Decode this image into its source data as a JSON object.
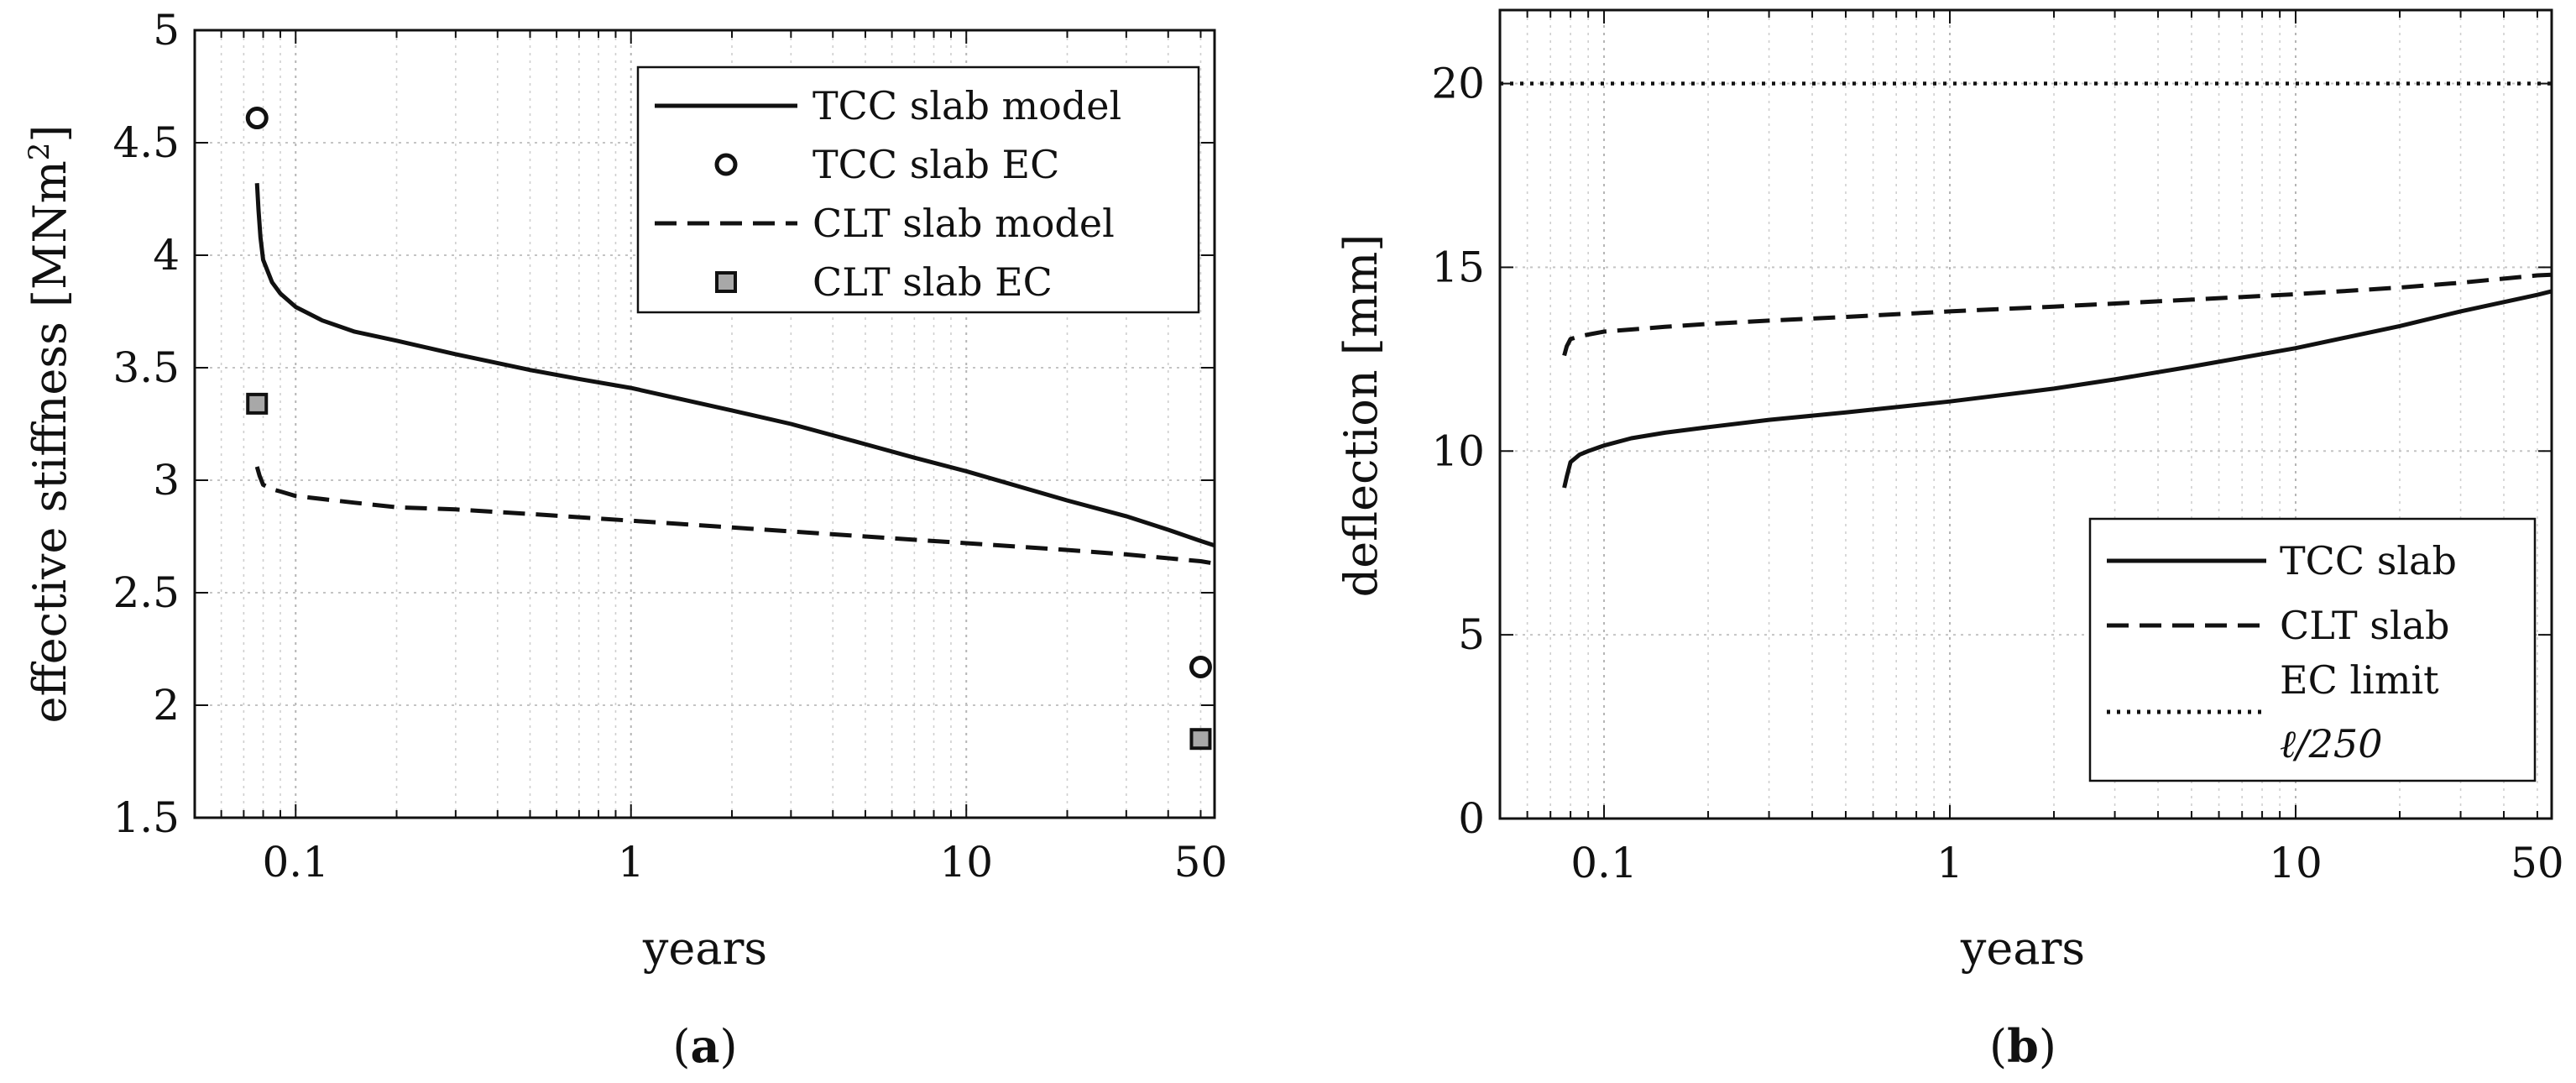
{
  "chart_data": [
    {
      "panel_label": "a",
      "type": "line",
      "title": "",
      "xlabel": "years",
      "ylabel": "effective stiffness [MNm2]",
      "ylabel_main": "effective stiffness [MNm",
      "ylabel_sup": "2",
      "ylabel_close": "]",
      "xscale": "log",
      "xlim": [
        0.05,
        55
      ],
      "ylim": [
        1.5,
        5
      ],
      "grid": true,
      "legend_position": "top-right",
      "xticks": [
        0.1,
        1,
        10,
        50
      ],
      "xtick_labels": [
        "0.1",
        "1",
        "10",
        "50"
      ],
      "yticks": [
        1.5,
        2,
        2.5,
        3,
        3.5,
        4,
        4.5,
        5
      ],
      "ytick_labels": [
        "1.5",
        "2",
        "2.5",
        "3",
        "3.5",
        "4",
        "4.5",
        "5"
      ],
      "series": [
        {
          "name": "TCC slab model",
          "style": "solid",
          "x": [
            0.0767,
            0.0775,
            0.0785,
            0.08,
            0.085,
            0.09,
            0.1,
            0.12,
            0.15,
            0.2,
            0.3,
            0.5,
            0.7,
            1,
            2,
            3,
            5,
            7,
            10,
            20,
            30,
            40,
            50,
            55
          ],
          "y": [
            4.32,
            4.2,
            4.08,
            3.98,
            3.88,
            3.83,
            3.77,
            3.71,
            3.66,
            3.62,
            3.56,
            3.49,
            3.45,
            3.41,
            3.31,
            3.25,
            3.16,
            3.1,
            3.04,
            2.91,
            2.84,
            2.78,
            2.73,
            2.71
          ]
        },
        {
          "name": "TCC slab EC",
          "style": "marker-circle",
          "x": [
            0.0767,
            50
          ],
          "y": [
            4.61,
            2.17
          ]
        },
        {
          "name": "CLT slab model",
          "style": "dashed",
          "x": [
            0.0767,
            0.078,
            0.08,
            0.085,
            0.09,
            0.1,
            0.15,
            0.2,
            0.3,
            0.5,
            1,
            2,
            5,
            10,
            20,
            30,
            50,
            55
          ],
          "y": [
            3.06,
            3.02,
            2.98,
            2.96,
            2.95,
            2.93,
            2.9,
            2.88,
            2.87,
            2.85,
            2.82,
            2.79,
            2.75,
            2.72,
            2.69,
            2.67,
            2.64,
            2.63
          ]
        },
        {
          "name": "CLT slab EC",
          "style": "marker-square",
          "x": [
            0.0767,
            50
          ],
          "y": [
            3.34,
            1.85
          ]
        }
      ]
    },
    {
      "panel_label": "b",
      "type": "line",
      "title": "",
      "xlabel": "years",
      "ylabel": "deflection [mm]",
      "xscale": "log",
      "xlim": [
        0.05,
        55
      ],
      "ylim": [
        0,
        22
      ],
      "grid": true,
      "legend_position": "bottom-right",
      "xticks": [
        0.1,
        1,
        10,
        50
      ],
      "xtick_labels": [
        "0.1",
        "1",
        "10",
        "50"
      ],
      "yticks": [
        0,
        5,
        10,
        15,
        20
      ],
      "ytick_labels": [
        "0",
        "5",
        "10",
        "15",
        "20"
      ],
      "series": [
        {
          "name": "TCC slab",
          "style": "solid",
          "x": [
            0.0767,
            0.078,
            0.08,
            0.085,
            0.09,
            0.1,
            0.12,
            0.15,
            0.2,
            0.3,
            0.5,
            1,
            2,
            3,
            5,
            10,
            20,
            30,
            50,
            55
          ],
          "y": [
            9.0,
            9.3,
            9.7,
            9.9,
            10.0,
            10.15,
            10.35,
            10.5,
            10.65,
            10.85,
            11.05,
            11.35,
            11.7,
            11.95,
            12.3,
            12.8,
            13.4,
            13.8,
            14.25,
            14.35
          ]
        },
        {
          "name": "CLT slab",
          "style": "dashed",
          "x": [
            0.0767,
            0.078,
            0.08,
            0.085,
            0.09,
            0.1,
            0.15,
            0.2,
            0.3,
            0.5,
            1,
            2,
            5,
            10,
            20,
            30,
            50,
            55
          ],
          "y": [
            12.6,
            12.85,
            13.05,
            13.12,
            13.17,
            13.25,
            13.38,
            13.46,
            13.55,
            13.65,
            13.8,
            13.93,
            14.12,
            14.27,
            14.45,
            14.58,
            14.78,
            14.8
          ]
        },
        {
          "name": "EC limit",
          "name_line2": "ℓ/250",
          "style": "dotted",
          "x": [
            0.05,
            55
          ],
          "y": [
            20,
            20
          ]
        }
      ]
    }
  ]
}
